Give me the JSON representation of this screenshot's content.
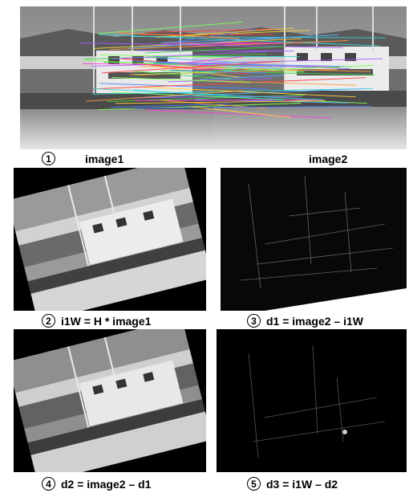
{
  "panels": {
    "p1": {
      "number": "1",
      "label_left": "image1",
      "label_right": "image2"
    },
    "p2": {
      "number": "2",
      "caption": "i1W = H * image1"
    },
    "p3": {
      "number": "3",
      "caption": "d1 = image2 – i1W"
    },
    "p4": {
      "number": "4",
      "caption": "d2 = image2 – d1"
    },
    "p5": {
      "number": "5",
      "caption": "d3 = i1W – d2"
    }
  },
  "match_line_colors": [
    "#ff3b3b",
    "#3bd63b",
    "#4a7dff",
    "#ffd23b",
    "#ff3bd6",
    "#3bd6d6",
    "#a35bff",
    "#ff9a3b",
    "#7fff5b",
    "#5bb0ff"
  ]
}
